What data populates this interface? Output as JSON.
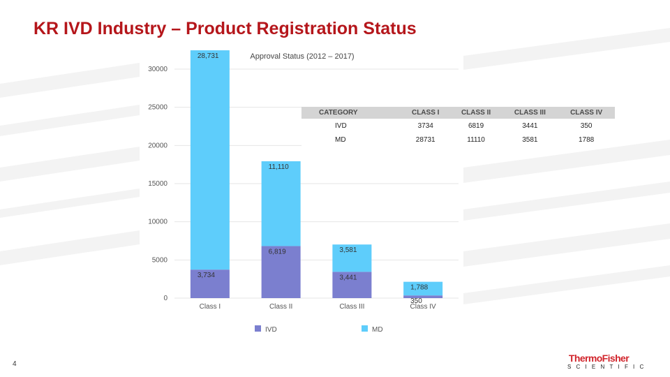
{
  "slide": {
    "title": "KR IVD Industry – Product Registration Status",
    "page_number": "4"
  },
  "chart_data": {
    "type": "bar",
    "stacked": true,
    "title": "Approval Status (2012 – 2017)",
    "categories": [
      "Class I",
      "Class II",
      "Class III",
      "Class IV"
    ],
    "series": [
      {
        "name": "IVD",
        "color": "#7b7fcf",
        "values": [
          3734,
          6819,
          3441,
          350
        ],
        "labels": [
          "3,734",
          "6,819",
          "3,441",
          "350"
        ]
      },
      {
        "name": "MD",
        "color": "#5ecdfb",
        "values": [
          28731,
          11110,
          3581,
          1788
        ],
        "labels": [
          "28,731",
          "11,110",
          "3,581",
          "1,788"
        ]
      }
    ],
    "ylim": [
      0,
      30000
    ],
    "y_ticks": [
      0,
      5000,
      10000,
      15000,
      20000,
      25000,
      30000
    ],
    "y_tick_labels": [
      "0",
      "5000",
      "10000",
      "15000",
      "20000",
      "25000",
      "30000"
    ],
    "xlabel": "",
    "ylabel": "",
    "legend": "bottom",
    "grid": true
  },
  "table": {
    "headers": [
      "CATEGORY",
      "CLASS I",
      "CLASS II",
      "CLASS III",
      "CLASS IV"
    ],
    "rows": [
      [
        "IVD",
        "3734",
        "6819",
        "3441",
        "350"
      ],
      [
        "MD",
        "28731",
        "11110",
        "3581",
        "1788"
      ]
    ]
  },
  "logo": {
    "main": "ThermoFisher",
    "sub": "SCIENTIFIC"
  },
  "colors": {
    "title": "#b5161b",
    "ivd": "#7b7fcf",
    "md": "#5ecdfb",
    "logo_red": "#d1242b"
  }
}
